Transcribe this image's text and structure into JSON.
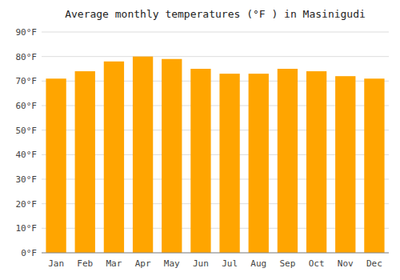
{
  "chart_data": {
    "type": "bar",
    "title": "Average monthly temperatures (°F ) in Masinigudi",
    "categories": [
      "Jan",
      "Feb",
      "Mar",
      "Apr",
      "May",
      "Jun",
      "Jul",
      "Aug",
      "Sep",
      "Oct",
      "Nov",
      "Dec"
    ],
    "values": [
      71,
      74,
      78,
      80,
      79,
      75,
      73,
      73,
      75,
      74,
      72,
      71
    ],
    "color": "#FFA500",
    "ylim": [
      0,
      90
    ],
    "yticks": [
      {
        "value": 0,
        "label": "0°F"
      },
      {
        "value": 10,
        "label": "10°F"
      },
      {
        "value": 20,
        "label": "20°F"
      },
      {
        "value": 30,
        "label": "30°F"
      },
      {
        "value": 40,
        "label": "40°F"
      },
      {
        "value": 50,
        "label": "50°F"
      },
      {
        "value": 60,
        "label": "60°F"
      },
      {
        "value": 70,
        "label": "70°F"
      },
      {
        "value": 80,
        "label": "80°F"
      },
      {
        "value": 90,
        "label": "90°F"
      }
    ],
    "grid": true
  }
}
